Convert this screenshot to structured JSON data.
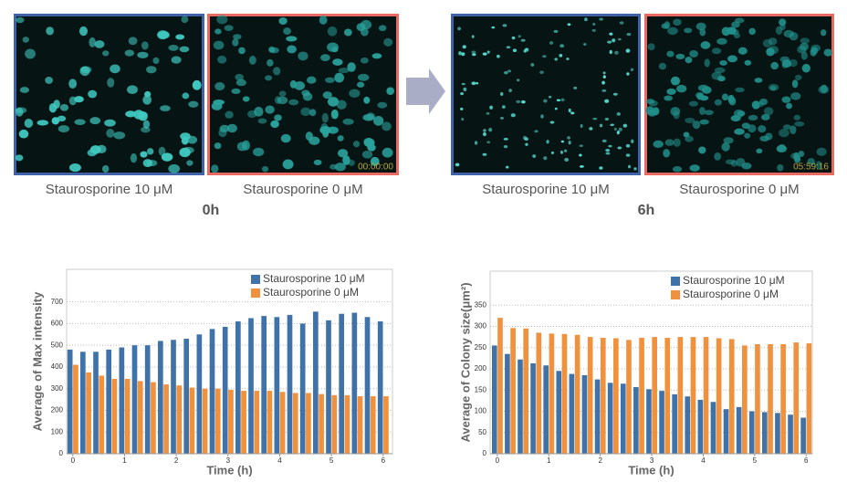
{
  "image_groups": [
    {
      "time": "0h",
      "images": [
        {
          "label": "Staurosporine 10 μM"
        },
        {
          "label": "Staurosporine 0 μM",
          "timestamp": "00:00:00"
        }
      ]
    },
    {
      "time": "6h",
      "images": [
        {
          "label": "Staurosporine 10 μM"
        },
        {
          "label": "Staurosporine 0 μM",
          "timestamp": "05:59:16"
        }
      ]
    }
  ],
  "chart_data": [
    {
      "type": "bar",
      "xlabel": "Time (h)",
      "ylabel": "Average of Max intensity",
      "x": [
        0,
        0.25,
        0.5,
        0.75,
        1,
        1.25,
        1.5,
        1.75,
        2,
        2.25,
        2.5,
        2.75,
        3,
        3.25,
        3.5,
        3.75,
        4,
        4.25,
        4.5,
        4.75,
        5,
        5.25,
        5.5,
        5.75,
        6
      ],
      "xlim": [
        -0.12,
        6.18
      ],
      "xticks": [
        0,
        1,
        2,
        3,
        4,
        5,
        6
      ],
      "ylim": [
        0,
        850
      ],
      "yticks": [
        0,
        100,
        200,
        300,
        400,
        500,
        600,
        700
      ],
      "grid": true,
      "legend": "top-right",
      "series": [
        {
          "name": "Staurosporine 10 μM",
          "color": "#3f72a8",
          "values": [
            480,
            470,
            470,
            480,
            490,
            500,
            500,
            520,
            525,
            530,
            550,
            575,
            585,
            610,
            625,
            635,
            630,
            640,
            600,
            655,
            615,
            645,
            650,
            630,
            610
          ]
        },
        {
          "name": "Staurosporine  0 μM",
          "color": "#f0913e",
          "values": [
            410,
            375,
            360,
            345,
            345,
            335,
            330,
            320,
            315,
            305,
            300,
            300,
            295,
            290,
            290,
            290,
            285,
            280,
            280,
            275,
            270,
            270,
            265,
            265,
            265
          ]
        }
      ]
    },
    {
      "type": "bar",
      "xlabel": "Time (h)",
      "ylabel": "Average of Colony size(μm²)",
      "x": [
        0,
        0.25,
        0.5,
        0.75,
        1,
        1.25,
        1.5,
        1.75,
        2,
        2.25,
        2.5,
        2.75,
        3,
        3.25,
        3.5,
        3.75,
        4,
        4.25,
        4.5,
        4.75,
        5,
        5.25,
        5.5,
        5.75,
        6
      ],
      "xlim": [
        -0.14,
        6.12
      ],
      "xticks": [
        0,
        1,
        2,
        3,
        4,
        5,
        6
      ],
      "ylim": [
        0,
        430
      ],
      "yticks": [
        0,
        50,
        100,
        150,
        200,
        250,
        300,
        350
      ],
      "grid": true,
      "legend": "top-right",
      "series": [
        {
          "name": "Staurosporine 10 μM",
          "color": "#3f72a8",
          "values": [
            255,
            235,
            222,
            213,
            208,
            195,
            188,
            185,
            175,
            167,
            165,
            157,
            152,
            148,
            140,
            135,
            127,
            122,
            105,
            110,
            100,
            98,
            96,
            92,
            85
          ]
        },
        {
          "name": "Staurosporine  0 μM",
          "color": "#f0913e",
          "values": [
            320,
            296,
            295,
            285,
            283,
            282,
            280,
            275,
            273,
            272,
            268,
            273,
            275,
            273,
            275,
            275,
            275,
            272,
            270,
            255,
            258,
            258,
            258,
            262,
            260
          ]
        }
      ]
    }
  ]
}
